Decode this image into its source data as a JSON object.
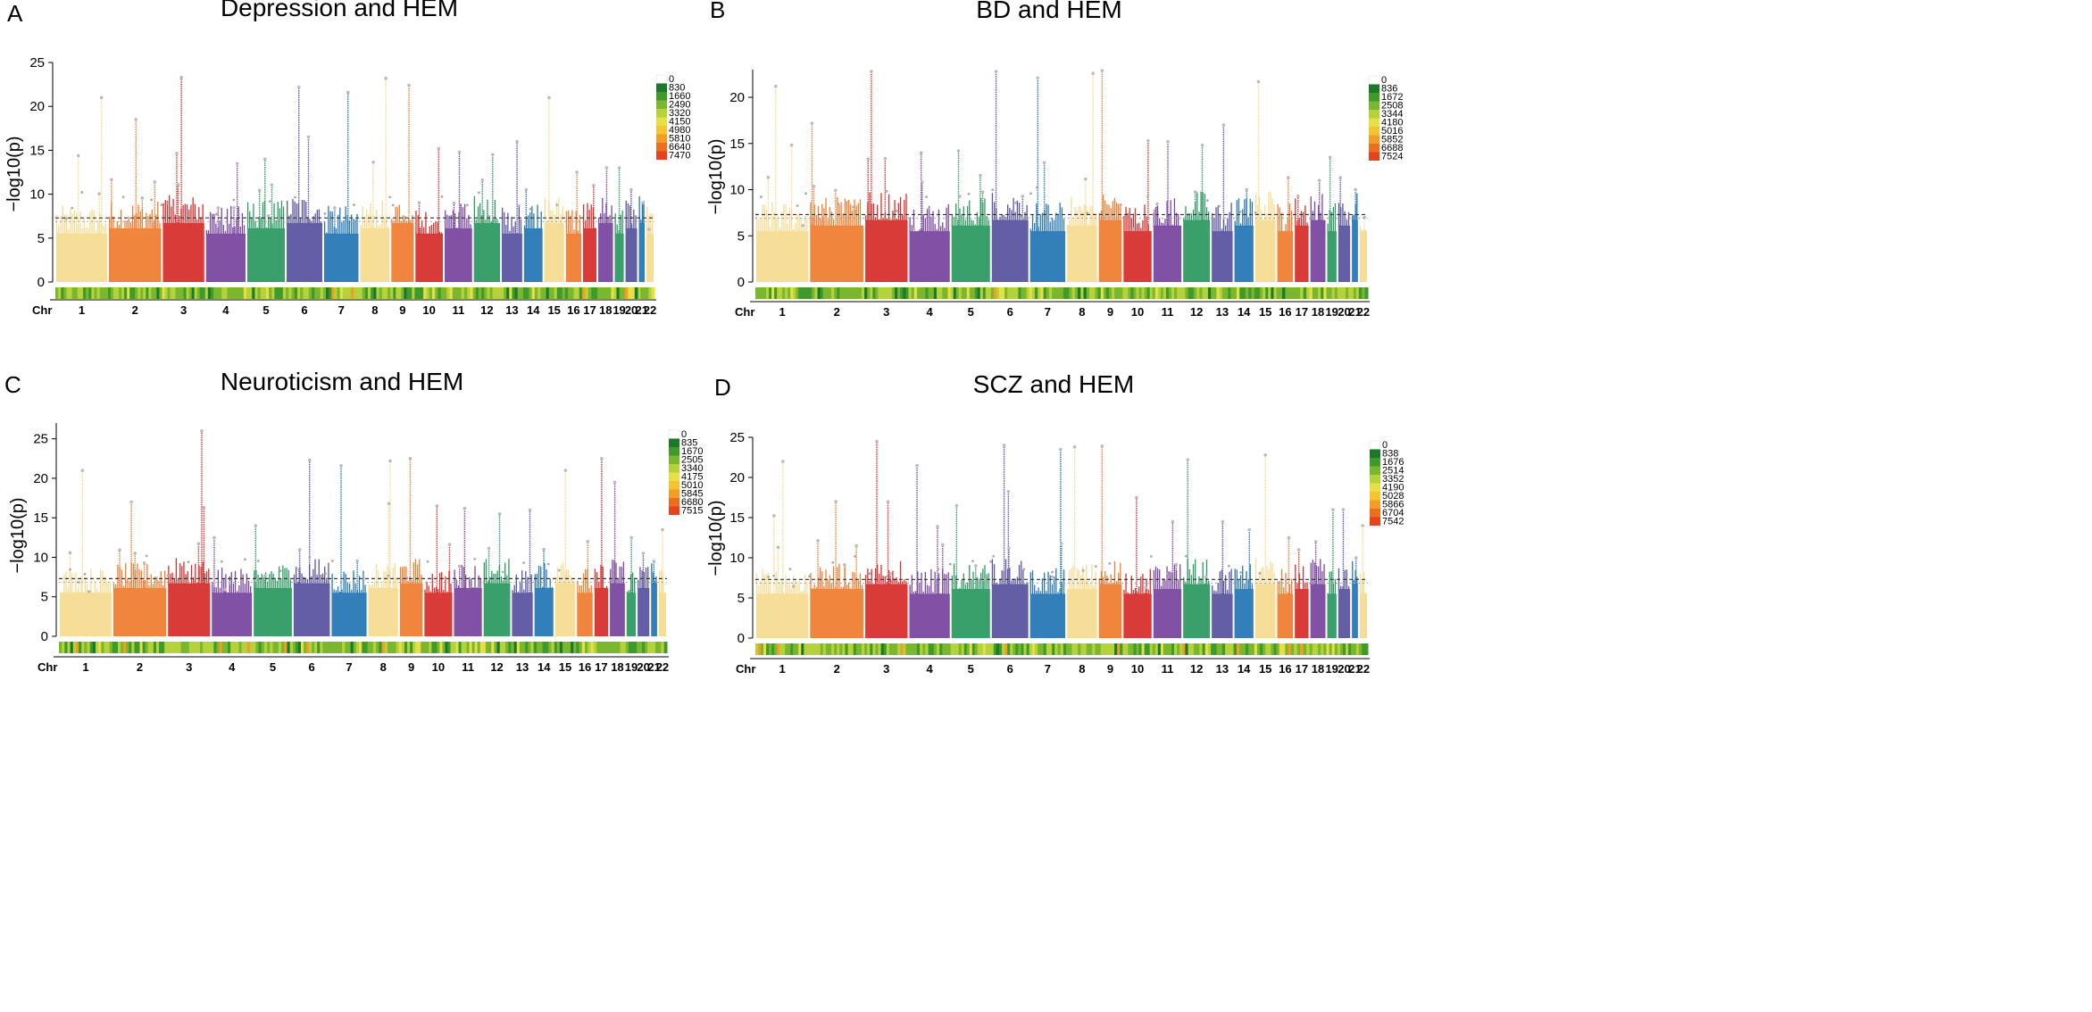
{
  "y_axis_label": "−log10(p)",
  "chr_label": "Chr",
  "chromosomes": [
    "1",
    "2",
    "3",
    "4",
    "5",
    "6",
    "7",
    "8",
    "9",
    "10",
    "11",
    "12",
    "13",
    "14",
    "15",
    "16",
    "17",
    "18",
    "19",
    "20",
    "21",
    "22"
  ],
  "colors": {
    "chromosome_palette": [
      "#f6dc94",
      "#ef7f33",
      "#d7302e",
      "#7a48a0",
      "#2e9a63",
      "#5b55a0",
      "#2878b5",
      "#f6dc94",
      "#ef7f33",
      "#d7302e",
      "#7a48a0",
      "#2e9a63",
      "#5b55a0",
      "#2878b5",
      "#f6dc94",
      "#ef7f33",
      "#d7302e",
      "#7a48a0",
      "#2e9a63",
      "#5b55a0",
      "#2878b5",
      "#f6dc94"
    ],
    "legend_scale": [
      "#ffffff",
      "#1a7a2a",
      "#3f9a2a",
      "#7ab72e",
      "#b6d23a",
      "#e4e046",
      "#f4c431",
      "#f29e25",
      "#ee6e1f",
      "#e8421c"
    ],
    "threshold_line": "#333333"
  },
  "chart_data": [
    {
      "type": "scatter",
      "panel_letter": "A",
      "title": "Depression and HEM",
      "xlabel": "Chr",
      "ylabel": "−log10(p)",
      "ylim": [
        0,
        25
      ],
      "y_ticks": [
        "0",
        "5",
        "10",
        "15",
        "20",
        "25"
      ],
      "significance_threshold": 7.3,
      "legend_values": [
        "0",
        "830",
        "1660",
        "2490",
        "3320",
        "4150",
        "4980",
        "5810",
        "6640",
        "7470"
      ],
      "chromosome_peak_values": [
        21,
        18.5,
        23.3,
        13.5,
        14,
        22.2,
        21.6,
        23.2,
        22.4,
        15.2,
        14.8,
        14.5,
        16,
        10.5,
        21,
        12.5,
        11,
        13,
        13,
        10.5,
        9,
        6
      ],
      "missing_x": [
        "9",
        "13",
        "14",
        "15",
        "21",
        "22"
      ]
    },
    {
      "type": "scatter",
      "panel_letter": "B",
      "title": "BD and HEM",
      "xlabel": "Chr",
      "ylabel": "−log10(p)",
      "ylim": [
        0,
        23
      ],
      "y_ticks": [
        "0",
        "5",
        "10",
        "15",
        "20"
      ],
      "significance_threshold": 7.3,
      "legend_values": [
        "0",
        "836",
        "1672",
        "2508",
        "3344",
        "4180",
        "5016",
        "5852",
        "6688",
        "7524"
      ],
      "chromosome_peak_values": [
        21.2,
        17.2,
        22.8,
        14,
        14.2,
        22.8,
        22.1,
        22.6,
        22.9,
        15.3,
        15.2,
        14.8,
        17,
        10,
        21.7,
        11.3,
        9.3,
        11,
        13.5,
        11.3,
        10,
        7
      ],
      "missing_x": [
        "9",
        "13",
        "14",
        "15",
        "21",
        "22"
      ]
    },
    {
      "type": "scatter",
      "panel_letter": "C",
      "title": "Neuroticism and HEM",
      "xlabel": "Chr",
      "ylabel": "−log10(p)",
      "ylim": [
        0,
        27
      ],
      "y_ticks": [
        "0",
        "5",
        "10",
        "15",
        "20",
        "25"
      ],
      "significance_threshold": 7.3,
      "legend_values": [
        "0",
        "835",
        "1670",
        "2505",
        "3340",
        "4175",
        "5010",
        "5845",
        "6680",
        "7515"
      ],
      "chromosome_peak_values": [
        21,
        17,
        26,
        12.5,
        14,
        22.3,
        21.6,
        22.2,
        22.5,
        16.5,
        16.2,
        15.5,
        16,
        11,
        21,
        12,
        22.5,
        19.5,
        12.5,
        10.5,
        9.5,
        13.5
      ],
      "missing_x": [
        "9",
        "13",
        "14",
        "15",
        "21",
        "22"
      ]
    },
    {
      "type": "scatter",
      "panel_letter": "D",
      "title": "SCZ and HEM",
      "xlabel": "Chr",
      "ylabel": "−log10(p)",
      "ylim": [
        0,
        25
      ],
      "y_ticks": [
        "0",
        "5",
        "10",
        "15",
        "20",
        "25"
      ],
      "significance_threshold": 7.3,
      "legend_values": [
        "0",
        "838",
        "1676",
        "2514",
        "3352",
        "4190",
        "5028",
        "5866",
        "6704",
        "7542"
      ],
      "chromosome_peak_values": [
        22,
        17,
        24.5,
        21.5,
        16.5,
        24,
        23.5,
        23.8,
        23.9,
        17.5,
        14.5,
        22.2,
        14.5,
        13.5,
        22.8,
        12.5,
        11,
        12,
        16,
        16,
        10,
        14
      ],
      "missing_x": [
        "9",
        "13",
        "14",
        "15",
        "21",
        "22"
      ]
    }
  ]
}
